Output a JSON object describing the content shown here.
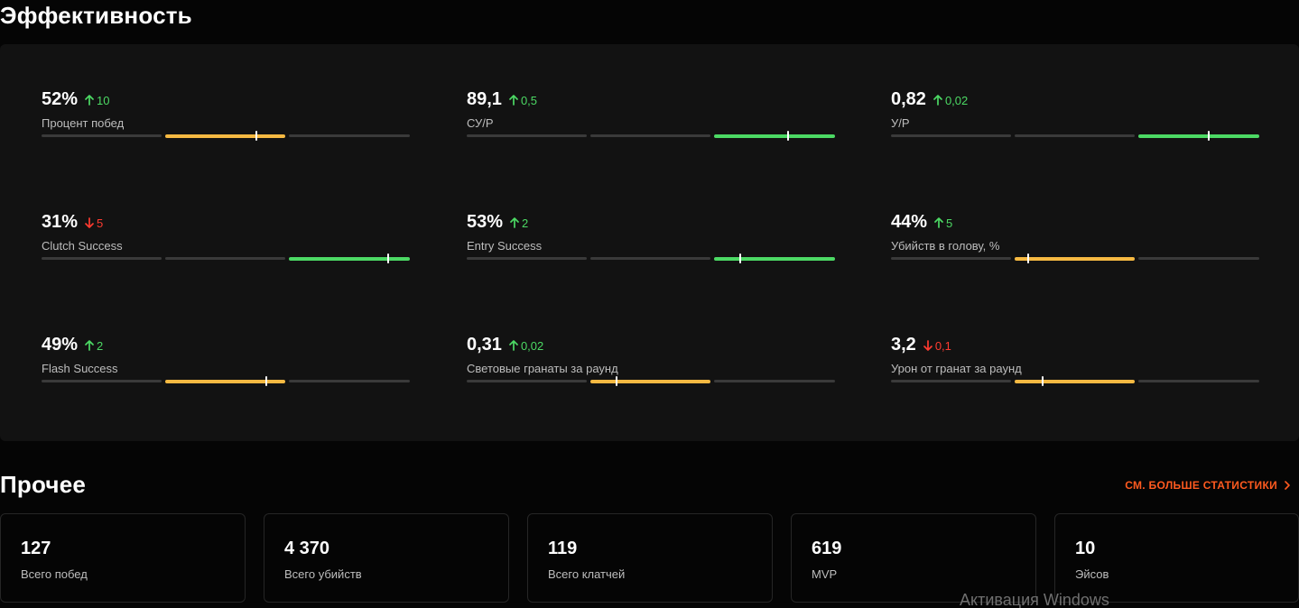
{
  "efficiency": {
    "title": "Эффективность",
    "colors": {
      "yellow": "#f5b942",
      "green": "#4cd964",
      "red": "#ff3b30",
      "track": "#3a3a3a"
    },
    "metrics": [
      {
        "value": "52%",
        "delta": "10",
        "trend": "up",
        "label": "Процент побед",
        "active_segment": 1,
        "segment_color": "yellow",
        "marker_position_pct": 76
      },
      {
        "value": "89,1",
        "delta": "0,5",
        "trend": "up",
        "label": "СУ/Р",
        "active_segment": 2,
        "segment_color": "green",
        "marker_position_pct": 61
      },
      {
        "value": "0,82",
        "delta": "0,02",
        "trend": "up",
        "label": "У/Р",
        "active_segment": 2,
        "segment_color": "green",
        "marker_position_pct": 58
      },
      {
        "value": "31%",
        "delta": "5",
        "trend": "down",
        "label": "Clutch Success",
        "active_segment": 2,
        "segment_color": "green",
        "marker_position_pct": 82
      },
      {
        "value": "53%",
        "delta": "2",
        "trend": "up",
        "label": "Entry Success",
        "active_segment": 2,
        "segment_color": "green",
        "marker_position_pct": 22
      },
      {
        "value": "44%",
        "delta": "5",
        "trend": "up",
        "label": "Убийств в голову, %",
        "active_segment": 1,
        "segment_color": "yellow",
        "marker_position_pct": 11
      },
      {
        "value": "49%",
        "delta": "2",
        "trend": "up",
        "label": "Flash Success",
        "active_segment": 1,
        "segment_color": "yellow",
        "marker_position_pct": 84
      },
      {
        "value": "0,31",
        "delta": "0,02",
        "trend": "up",
        "label": "Световые гранаты за раунд",
        "active_segment": 1,
        "segment_color": "yellow",
        "marker_position_pct": 22
      },
      {
        "value": "3,2",
        "delta": "0,1",
        "trend": "down",
        "label": "Урон от гранат за раунд",
        "active_segment": 1,
        "segment_color": "yellow",
        "marker_position_pct": 23
      }
    ]
  },
  "other": {
    "title": "Прочее",
    "more_link": "СМ. БОЛЬШЕ СТАТИСТИКИ",
    "cards": [
      {
        "value": "127",
        "label": "Всего побед"
      },
      {
        "value": "4 370",
        "label": "Всего убийств"
      },
      {
        "value": "119",
        "label": "Всего клатчей"
      },
      {
        "value": "619",
        "label": "MVP"
      },
      {
        "value": "10",
        "label": "Эйсов"
      }
    ]
  },
  "watermark": "Активация Windows"
}
